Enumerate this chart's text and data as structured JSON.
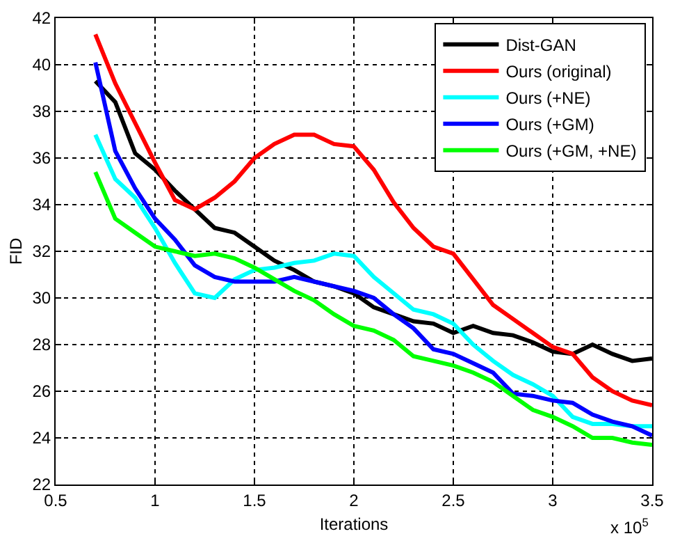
{
  "chart_data": {
    "type": "line",
    "xlabel": "Iterations",
    "ylabel": "FID",
    "x": [
      0.7,
      0.8,
      0.9,
      1.0,
      1.1,
      1.2,
      1.3,
      1.4,
      1.5,
      1.6,
      1.7,
      1.8,
      1.9,
      2.0,
      2.1,
      2.2,
      2.3,
      2.4,
      2.5,
      2.6,
      2.7,
      2.8,
      2.9,
      3.0,
      3.1,
      3.2,
      3.3,
      3.4,
      3.5
    ],
    "series": [
      {
        "name": "Dist-GAN",
        "color": "#000000",
        "values": [
          39.3,
          38.4,
          36.2,
          35.5,
          34.6,
          33.8,
          33.0,
          32.8,
          32.2,
          31.6,
          31.2,
          30.7,
          30.5,
          30.2,
          29.6,
          29.3,
          29.0,
          28.9,
          28.5,
          28.8,
          28.5,
          28.4,
          28.1,
          27.7,
          27.6,
          28.0,
          27.6,
          27.3,
          27.4
        ]
      },
      {
        "name": "Ours (original)",
        "color": "#ff0000",
        "values": [
          41.3,
          39.2,
          37.5,
          35.8,
          34.2,
          33.8,
          34.3,
          35.0,
          36.0,
          36.6,
          37.0,
          37.0,
          36.6,
          36.5,
          35.5,
          34.1,
          33.0,
          32.2,
          31.9,
          30.8,
          29.7,
          29.1,
          28.5,
          27.9,
          27.6,
          26.6,
          26.0,
          25.6,
          25.4
        ]
      },
      {
        "name": "Ours (+NE)",
        "color": "#00ffff",
        "values": [
          37.0,
          35.1,
          34.3,
          33.0,
          31.5,
          30.2,
          30.0,
          30.8,
          31.2,
          31.3,
          31.5,
          31.6,
          31.9,
          31.8,
          30.9,
          30.2,
          29.5,
          29.3,
          28.9,
          28.0,
          27.3,
          26.7,
          26.3,
          25.8,
          24.9,
          24.6,
          24.6,
          24.5,
          24.5
        ]
      },
      {
        "name": "Ours (+GM)",
        "color": "#0000ff",
        "values": [
          40.1,
          36.3,
          34.7,
          33.4,
          32.5,
          31.4,
          30.9,
          30.7,
          30.7,
          30.7,
          30.9,
          30.7,
          30.5,
          30.3,
          30.0,
          29.3,
          28.7,
          27.8,
          27.6,
          27.2,
          26.8,
          25.9,
          25.8,
          25.6,
          25.5,
          25.0,
          24.7,
          24.5,
          24.1
        ]
      },
      {
        "name": "Ours (+GM, +NE)",
        "color": "#00ff00",
        "values": [
          35.4,
          33.4,
          32.8,
          32.2,
          32.0,
          31.8,
          31.9,
          31.7,
          31.3,
          30.8,
          30.3,
          29.9,
          29.3,
          28.8,
          28.6,
          28.2,
          27.5,
          27.3,
          27.1,
          26.8,
          26.4,
          25.8,
          25.2,
          24.9,
          24.5,
          24.0,
          24.0,
          23.8,
          23.7
        ]
      }
    ],
    "xlim": [
      0.5,
      3.5
    ],
    "xticks": [
      0.5,
      1,
      1.5,
      2,
      2.5,
      3,
      3.5
    ],
    "ylim": [
      22,
      42
    ],
    "yticks": [
      22,
      24,
      26,
      28,
      30,
      32,
      34,
      36,
      38,
      40,
      42
    ],
    "annotations": [
      "x 10$^{5}$"
    ],
    "grid": true,
    "legend": "top right",
    "marker": "none",
    "line_style": "solid"
  }
}
